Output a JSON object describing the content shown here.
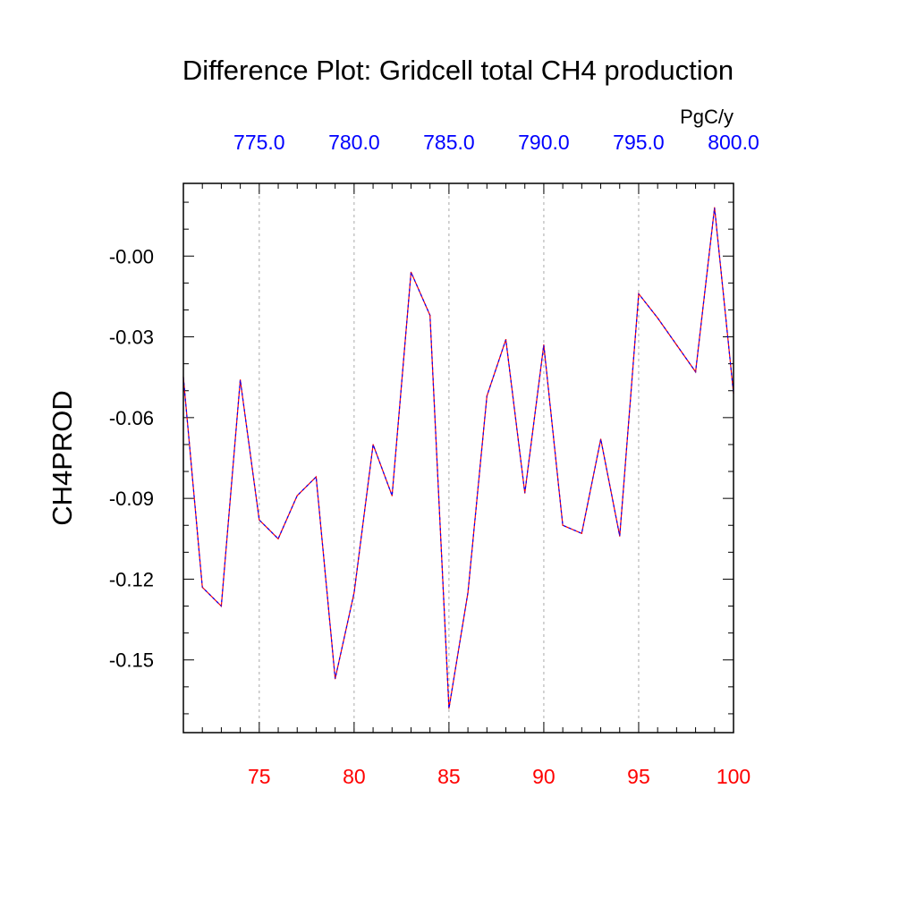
{
  "chart_data": {
    "type": "line",
    "title": "Difference Plot: Gridcell total CH4 production",
    "ylabel": "CH4PROD",
    "units": "PgC/y",
    "xlim": [
      71,
      100
    ],
    "ylim": [
      -0.177,
      0.027
    ],
    "bottom_axis": {
      "ticks": [
        75,
        80,
        85,
        90,
        95,
        100
      ],
      "tick_labels": [
        "75",
        "80",
        "85",
        "90",
        "95",
        "100"
      ],
      "color": "#ff0000"
    },
    "top_axis": {
      "ticks": [
        75,
        80,
        85,
        90,
        95,
        100
      ],
      "tick_labels": [
        "775.0",
        "780.0",
        "785.0",
        "790.0",
        "795.0",
        "800.0"
      ],
      "color": "#0000ff"
    },
    "left_axis": {
      "ticks": [
        0.0,
        -0.03,
        -0.06,
        -0.09,
        -0.12,
        -0.15
      ],
      "tick_labels": [
        "-0.00",
        "-0.03",
        "-0.06",
        "-0.09",
        "-0.12",
        "-0.15"
      ]
    },
    "grid": "vertical dashed at major x ticks",
    "series": [
      {
        "line_color": "#ff0000",
        "dash_color": "#0000ff",
        "x": [
          71,
          72,
          73,
          74,
          75,
          76,
          77,
          78,
          79,
          80,
          81,
          82,
          83,
          84,
          85,
          86,
          87,
          88,
          89,
          90,
          91,
          92,
          93,
          94,
          95,
          96,
          97,
          98,
          99,
          100
        ],
        "values": [
          -0.045,
          -0.123,
          -0.13,
          -0.046,
          -0.098,
          -0.105,
          -0.089,
          -0.082,
          -0.157,
          -0.125,
          -0.07,
          -0.089,
          -0.006,
          -0.022,
          -0.168,
          -0.125,
          -0.052,
          -0.031,
          -0.088,
          -0.033,
          -0.1,
          -0.103,
          -0.068,
          -0.104,
          -0.014,
          -0.023,
          -0.033,
          -0.043,
          0.018,
          -0.051
        ]
      }
    ]
  }
}
